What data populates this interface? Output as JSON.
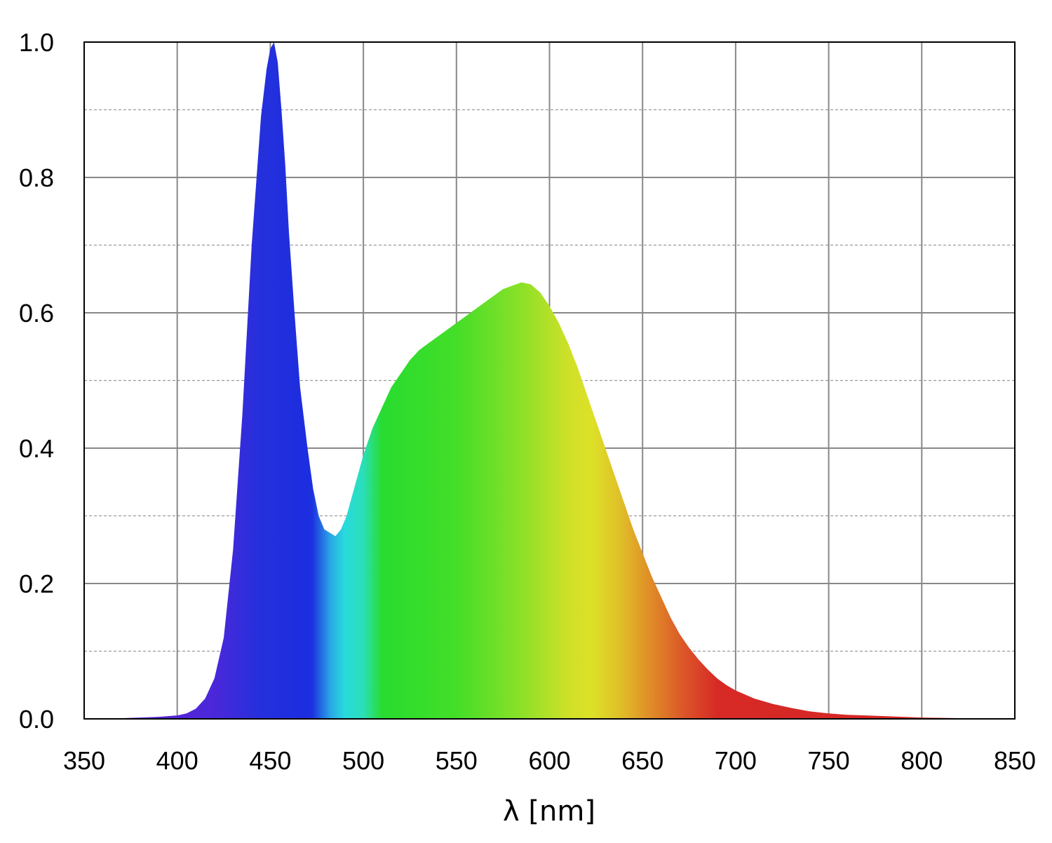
{
  "chart_data": {
    "type": "area",
    "title": "",
    "xlabel": "λ [nm]",
    "ylabel": "",
    "xlim": [
      350,
      850
    ],
    "ylim": [
      0,
      1.0
    ],
    "x_ticks": [
      350,
      400,
      450,
      500,
      550,
      600,
      650,
      700,
      750,
      800,
      850
    ],
    "x_tick_labels": [
      "350",
      "400",
      "450",
      "500",
      "550",
      "600",
      "650",
      "700",
      "750",
      "800",
      "850"
    ],
    "y_ticks": [
      0,
      0.2,
      0.4,
      0.6,
      0.8,
      1.0
    ],
    "y_tick_labels": [
      "0.0",
      "0.2",
      "0.4",
      "0.6",
      "0.8",
      "1.0"
    ],
    "y_minor_gridlines": [
      0.1,
      0.3,
      0.5,
      0.7,
      0.9
    ],
    "grid": true,
    "legend": "none",
    "fill": "visible-spectrum gradient",
    "series": [
      {
        "x": [
          360,
          380,
          390,
          400,
          405,
          410,
          415,
          420,
          425,
          430,
          435,
          440,
          445,
          448,
          450,
          452,
          454,
          456,
          458,
          460,
          463,
          466,
          470,
          473,
          476,
          479,
          482,
          485,
          488,
          491,
          494,
          497,
          500,
          505,
          510,
          515,
          520,
          525,
          530,
          535,
          540,
          545,
          550,
          555,
          560,
          565,
          570,
          575,
          580,
          585,
          590,
          595,
          600,
          605,
          610,
          615,
          620,
          625,
          630,
          635,
          640,
          645,
          650,
          655,
          660,
          665,
          670,
          675,
          680,
          685,
          690,
          695,
          700,
          710,
          720,
          730,
          740,
          750,
          760,
          770,
          780,
          790,
          800,
          820,
          840,
          850
        ],
        "y": [
          0.0,
          0.002,
          0.003,
          0.005,
          0.008,
          0.015,
          0.03,
          0.06,
          0.12,
          0.25,
          0.45,
          0.7,
          0.89,
          0.96,
          0.99,
          1.0,
          0.97,
          0.9,
          0.82,
          0.72,
          0.6,
          0.49,
          0.4,
          0.34,
          0.3,
          0.28,
          0.275,
          0.27,
          0.28,
          0.3,
          0.33,
          0.36,
          0.39,
          0.43,
          0.46,
          0.49,
          0.51,
          0.53,
          0.545,
          0.555,
          0.565,
          0.575,
          0.585,
          0.595,
          0.605,
          0.615,
          0.625,
          0.635,
          0.64,
          0.645,
          0.642,
          0.63,
          0.61,
          0.585,
          0.555,
          0.52,
          0.48,
          0.44,
          0.4,
          0.36,
          0.32,
          0.28,
          0.245,
          0.21,
          0.18,
          0.15,
          0.125,
          0.105,
          0.088,
          0.073,
          0.06,
          0.05,
          0.042,
          0.03,
          0.022,
          0.016,
          0.011,
          0.008,
          0.006,
          0.005,
          0.004,
          0.003,
          0.002,
          0.001,
          0.0005,
          0.0
        ]
      }
    ]
  },
  "colors": {
    "axis": "#000000",
    "grid_major": "#888888",
    "grid_minor": "#9a9a9a"
  }
}
